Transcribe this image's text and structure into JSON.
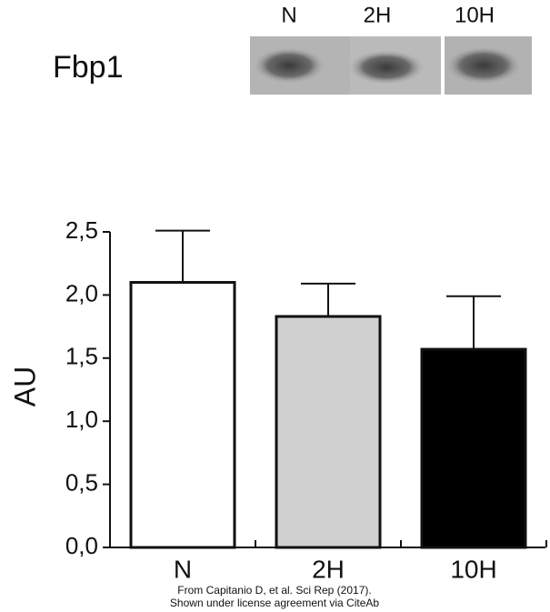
{
  "blot": {
    "label": "Fbp1",
    "lanes": [
      "N",
      "2H",
      "10H"
    ]
  },
  "chart_data": {
    "type": "bar",
    "y_label": "AU",
    "categories": [
      "N",
      "2H",
      "10H"
    ],
    "values": [
      2.1,
      1.83,
      1.57
    ],
    "errors": [
      0.41,
      0.26,
      0.42
    ],
    "colors": [
      "#ffffff",
      "#d0d0d0",
      "#000000"
    ],
    "ylim": [
      0,
      2.5
    ],
    "yticks": [
      {
        "value": 0,
        "label": "0,0"
      },
      {
        "value": 0.5,
        "label": "0,5"
      },
      {
        "value": 1,
        "label": "1,0"
      },
      {
        "value": 1.5,
        "label": "1,5"
      },
      {
        "value": 2,
        "label": "2,0"
      },
      {
        "value": 2.5,
        "label": "2,5"
      }
    ]
  },
  "source": [
    "From Capitanio D, et al. Sci Rep (2017).",
    "Shown under license agreement via CiteAb"
  ]
}
